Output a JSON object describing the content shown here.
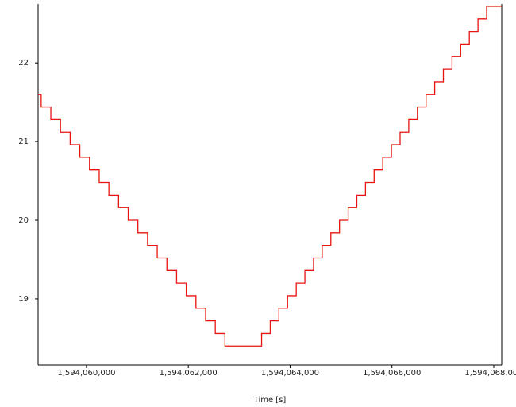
{
  "chart_data": {
    "type": "line",
    "x_label": "Time [s]",
    "xlim": [
      1594059050,
      1594068156
    ],
    "ylim": [
      18.16,
      22.75
    ],
    "xticks": [
      {
        "value": 1594060000,
        "label": "1,594,060,000"
      },
      {
        "value": 1594062000,
        "label": "1,594,062,000"
      },
      {
        "value": 1594064000,
        "label": "1,594,064,000"
      },
      {
        "value": 1594066000,
        "label": "1,594,066,000"
      },
      {
        "value": 1594068000,
        "label": "1,594,068,000"
      }
    ],
    "yticks": [
      19,
      20,
      21,
      22
    ],
    "grid": false,
    "series": [
      {
        "color": "#e8140f",
        "x": [
          1594059050,
          1594059110,
          1594059110,
          1594059300,
          1594059300,
          1594059490,
          1594059490,
          1594059680,
          1594059680,
          1594059870,
          1594059870,
          1594060060,
          1594060060,
          1594060250,
          1594060250,
          1594060440,
          1594060440,
          1594060630,
          1594060630,
          1594060820,
          1594060820,
          1594061010,
          1594061010,
          1594061200,
          1594061200,
          1594061390,
          1594061390,
          1594061580,
          1594061580,
          1594061770,
          1594061770,
          1594061960,
          1594061960,
          1594062150,
          1594062150,
          1594062340,
          1594062340,
          1594062530,
          1594062530,
          1594062720,
          1594062720,
          1594063440,
          1594063440,
          1594063610,
          1594063610,
          1594063780,
          1594063780,
          1594063950,
          1594063950,
          1594064120,
          1594064120,
          1594064290,
          1594064290,
          1594064460,
          1594064460,
          1594064630,
          1594064630,
          1594064800,
          1594064800,
          1594064970,
          1594064970,
          1594065140,
          1594065140,
          1594065310,
          1594065310,
          1594065480,
          1594065480,
          1594065650,
          1594065650,
          1594065820,
          1594065820,
          1594065990,
          1594065990,
          1594066160,
          1594066160,
          1594066330,
          1594066330,
          1594066500,
          1594066500,
          1594066670,
          1594066670,
          1594066840,
          1594066840,
          1594067010,
          1594067010,
          1594067180,
          1594067180,
          1594067350,
          1594067350,
          1594067520,
          1594067520,
          1594067690,
          1594067690,
          1594067860,
          1594067860,
          1594068156
        ],
        "values": [
          21.6,
          21.6,
          21.44,
          21.44,
          21.28,
          21.28,
          21.12,
          21.12,
          20.96,
          20.96,
          20.8,
          20.8,
          20.64,
          20.64,
          20.48,
          20.48,
          20.32,
          20.32,
          20.16,
          20.16,
          20.0,
          20.0,
          19.84,
          19.84,
          19.68,
          19.68,
          19.52,
          19.52,
          19.36,
          19.36,
          19.2,
          19.2,
          19.04,
          19.04,
          18.88,
          18.88,
          18.72,
          18.72,
          18.56,
          18.56,
          18.4,
          18.4,
          18.56,
          18.56,
          18.72,
          18.72,
          18.88,
          18.88,
          19.04,
          19.04,
          19.2,
          19.2,
          19.36,
          19.36,
          19.52,
          19.52,
          19.68,
          19.68,
          19.84,
          19.84,
          20.0,
          20.0,
          20.16,
          20.16,
          20.32,
          20.32,
          20.48,
          20.48,
          20.64,
          20.64,
          20.8,
          20.8,
          20.96,
          20.96,
          21.12,
          21.12,
          21.28,
          21.28,
          21.44,
          21.44,
          21.6,
          21.6,
          21.76,
          21.76,
          21.92,
          21.92,
          22.08,
          22.08,
          22.24,
          22.24,
          22.4,
          22.4,
          22.56,
          22.56,
          22.72,
          22.72
        ]
      }
    ]
  }
}
